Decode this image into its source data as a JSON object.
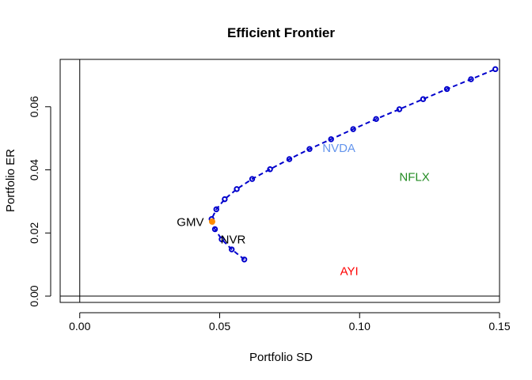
{
  "chart_data": {
    "type": "scatter",
    "title": "Efficient Frontier",
    "xlabel": "Portfolio SD",
    "ylabel": "Portfolio ER",
    "xlim": [
      -0.007,
      0.15
    ],
    "ylim": [
      -0.002,
      0.075
    ],
    "x_ticks": [
      0.0,
      0.05,
      0.1,
      0.15
    ],
    "x_tick_labels": [
      "0.00",
      "0.05",
      "0.10",
      "0.15"
    ],
    "y_ticks": [
      0.0,
      0.02,
      0.04,
      0.06
    ],
    "y_tick_labels": [
      "0.00",
      "0.02",
      "0.04",
      "0.06"
    ],
    "reference_lines": {
      "vertical_x": 0,
      "horizontal_y": 0
    },
    "frontier": {
      "color": "#0000cc",
      "points": [
        {
          "x": 0.0588,
          "y": 0.0116
        },
        {
          "x": 0.0543,
          "y": 0.0148
        },
        {
          "x": 0.0507,
          "y": 0.018
        },
        {
          "x": 0.0483,
          "y": 0.0212
        },
        {
          "x": 0.0471,
          "y": 0.0244
        },
        {
          "x": 0.0488,
          "y": 0.0275
        },
        {
          "x": 0.0518,
          "y": 0.0307
        },
        {
          "x": 0.0561,
          "y": 0.0339
        },
        {
          "x": 0.0616,
          "y": 0.0371
        },
        {
          "x": 0.068,
          "y": 0.0402
        },
        {
          "x": 0.0749,
          "y": 0.0434
        },
        {
          "x": 0.0821,
          "y": 0.0466
        },
        {
          "x": 0.0898,
          "y": 0.0497
        },
        {
          "x": 0.0977,
          "y": 0.0529
        },
        {
          "x": 0.1059,
          "y": 0.0561
        },
        {
          "x": 0.1142,
          "y": 0.0592
        },
        {
          "x": 0.1227,
          "y": 0.0624
        },
        {
          "x": 0.1312,
          "y": 0.0656
        },
        {
          "x": 0.1398,
          "y": 0.0687
        },
        {
          "x": 0.1485,
          "y": 0.0719
        }
      ]
    },
    "gmv_point": {
      "x": 0.0473,
      "y": 0.0236,
      "color": "#ff8c00"
    },
    "asset_labels": [
      {
        "text": "GMV",
        "x": 0.0395,
        "y": 0.0234,
        "color": "#000000"
      },
      {
        "text": "NVR",
        "x": 0.0548,
        "y": 0.0179,
        "color": "#000000"
      },
      {
        "text": "NVDA",
        "x": 0.0926,
        "y": 0.0469,
        "color": "#6495ed"
      },
      {
        "text": "NFLX",
        "x": 0.1196,
        "y": 0.0377,
        "color": "#228b22"
      },
      {
        "text": "AYI",
        "x": 0.0963,
        "y": 0.0079,
        "color": "#ff0000"
      }
    ]
  }
}
